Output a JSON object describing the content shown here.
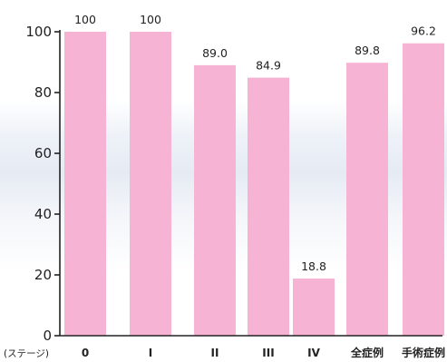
{
  "chart_data": {
    "type": "bar",
    "x_axis_title": "(ステージ)",
    "categories": [
      "0",
      "I",
      "II",
      "III",
      "IV",
      "全症例",
      "手術症例"
    ],
    "values": [
      100,
      100,
      89.0,
      84.9,
      18.8,
      89.8,
      96.2
    ],
    "data_labels": [
      "100",
      "100",
      "89.0",
      "84.9",
      "18.8",
      "89.8",
      "96.2"
    ],
    "y_ticks": [
      0,
      20,
      40,
      60,
      80,
      100
    ],
    "ylim": [
      0,
      100
    ],
    "grid": false,
    "bar_color": "#f7b3d3"
  }
}
